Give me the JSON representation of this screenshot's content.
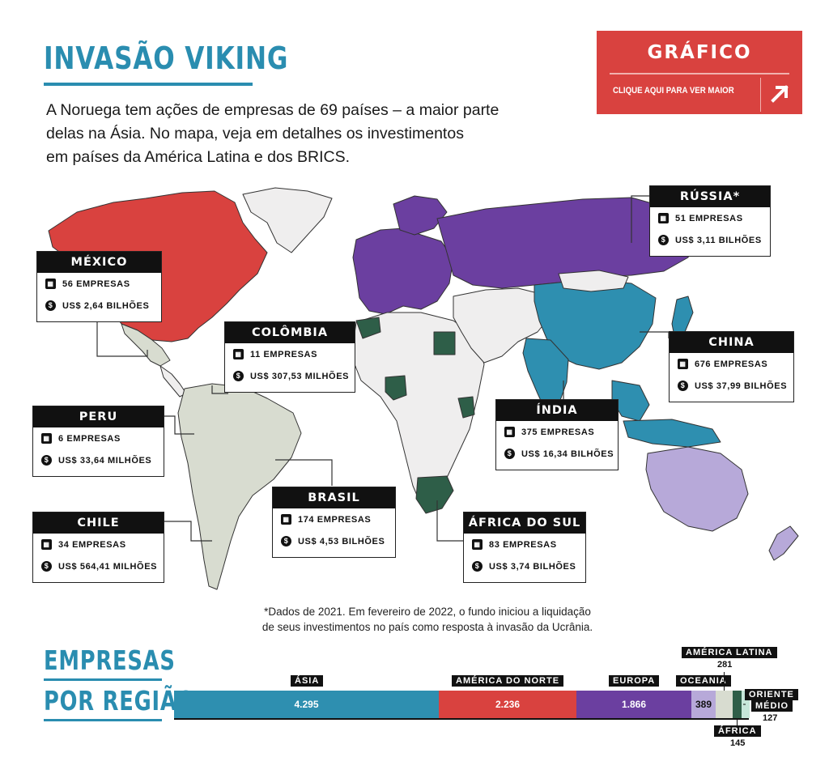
{
  "header": {
    "title": "INVASÃO VIKING",
    "intro_lines": [
      "A Noruega tem ações de empresas de 69 países  – a maior parte",
      "delas na Ásia. No mapa, veja em detalhes os investimentos",
      "em países da América Latina e dos BRICS."
    ]
  },
  "graphic_button": {
    "title": "GRÁFICO",
    "link_label": "CLIQUE AQUI PARA VER MAIOR",
    "icon": "arrow-up-right-icon"
  },
  "colors": {
    "accent": "#2a8db0",
    "asia": "#2e8fb0",
    "north_america": "#d9423f",
    "europe": "#6b3fa0",
    "oceania": "#b7a9d9",
    "latin_america": "#d8dcd0",
    "africa": "#2e5e48",
    "middle_east": "#c5e6d9",
    "other_countries": "#efeeee"
  },
  "map": {
    "country_boxes": [
      {
        "name": "MÉXICO",
        "companies": "56 EMPRESAS",
        "value": "US$ 2,64 BILHÕES"
      },
      {
        "name": "COLÔMBIA",
        "companies": "11 EMPRESAS",
        "value": "US$ 307,53 MILHÕES"
      },
      {
        "name": "PERU",
        "companies": "6 EMPRESAS",
        "value": "US$ 33,64 MILHÕES"
      },
      {
        "name": "CHILE",
        "companies": "34 EMPRESAS",
        "value": "US$ 564,41 MILHÕES"
      },
      {
        "name": "BRASIL",
        "companies": "174 EMPRESAS",
        "value": "US$ 4,53 BILHÕES"
      },
      {
        "name": "RÚSSIA*",
        "companies": "51 EMPRESAS",
        "value": "US$ 3,11 BILHÕES"
      },
      {
        "name": "CHINA",
        "companies": "676 EMPRESAS",
        "value": "US$ 37,99 BILHÕES"
      },
      {
        "name": "ÍNDIA",
        "companies": "375 EMPRESAS",
        "value": "US$ 16,34 BILHÕES"
      },
      {
        "name": "ÁFRICA DO SUL",
        "companies": "83 EMPRESAS",
        "value": "US$ 3,74 BILHÕES"
      }
    ],
    "icons": {
      "companies": "building-icon",
      "value": "coin-icon"
    }
  },
  "footnote_lines": [
    "*Dados de 2021. Em fevereiro de 2022, o fundo iniciou a liquidação",
    "de seus investimentos no país como resposta à invasão da Ucrânia."
  ],
  "section": {
    "title_lines": [
      "EMPRESAS",
      "POR REGIÃO"
    ]
  },
  "chart_data": {
    "type": "bar",
    "orientation": "horizontal-stacked",
    "title": "EMPRESAS POR REGIÃO",
    "categories": [
      "ÁSIA",
      "AMÉRICA DO NORTE",
      "EUROPA",
      "OCEANIA",
      "AMÉRICA LATINA",
      "ÁFRICA",
      "ORIENTE MÉDIO"
    ],
    "values": [
      4295,
      2236,
      1866,
      389,
      281,
      145,
      127
    ],
    "value_labels": [
      "4.295",
      "2.236",
      "1.866",
      "389",
      "281",
      "145",
      "127"
    ],
    "legend": "inline"
  }
}
